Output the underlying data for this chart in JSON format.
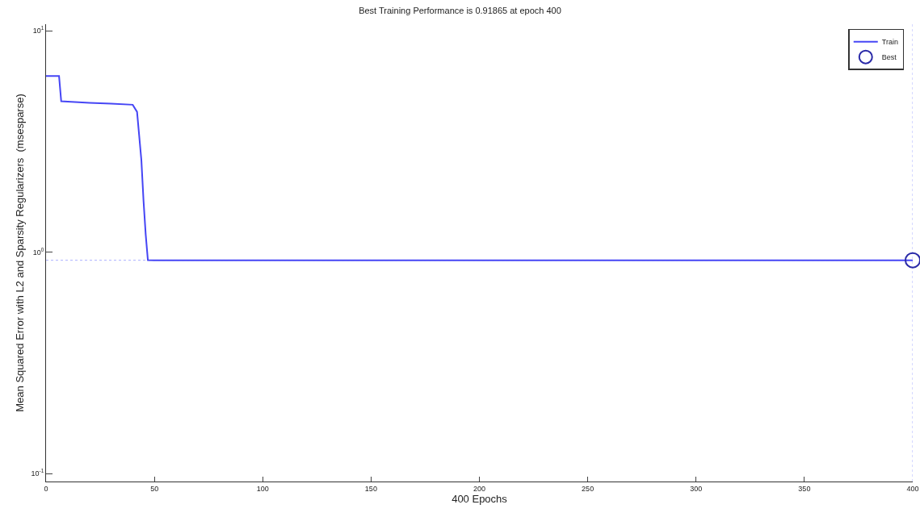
{
  "chart_data": {
    "type": "line",
    "title": "Best Training Performance is 0.91865 at epoch 400",
    "xlabel": "400 Epochs",
    "ylabel": "Mean Squared Error with L2 and Sparsity Regularizers  (msesparse)",
    "x": [
      0,
      6,
      7,
      10,
      20,
      30,
      40,
      42,
      44,
      45,
      46,
      47,
      50,
      100,
      200,
      300,
      400
    ],
    "series": [
      {
        "name": "Train",
        "color": "#4646f5",
        "values": [
          6.24,
          6.24,
          4.8,
          4.78,
          4.72,
          4.68,
          4.63,
          4.3,
          2.6,
          1.7,
          1.2,
          0.92,
          0.91865,
          0.91865,
          0.91865,
          0.91865,
          0.91865
        ]
      },
      {
        "name": "Best",
        "type": "scatter",
        "marker": "circle",
        "color": "#2a2aa8",
        "x": [
          400
        ],
        "values": [
          0.91865
        ]
      }
    ],
    "ref_lines": [
      {
        "axis": "y",
        "value": 0.91865,
        "color": "#aab0ff",
        "line_style": "dotted"
      },
      {
        "axis": "x",
        "value": 400,
        "color": "#aab0ff",
        "line_style": "dotted"
      }
    ],
    "log": "y",
    "xlim": [
      0,
      400
    ],
    "xticks": [
      0,
      50,
      100,
      150,
      200,
      250,
      300,
      350,
      400
    ],
    "ylim": [
      0.092,
      10.7
    ],
    "yticks": [
      {
        "value": 0.1,
        "label": "10$^{-1}$"
      },
      {
        "value": 1,
        "label": "10$^{0}$"
      },
      {
        "value": 10,
        "label": "10$^{1}$"
      }
    ],
    "grid": false,
    "legend": "top right",
    "line_style": "solid",
    "marker": "none"
  }
}
